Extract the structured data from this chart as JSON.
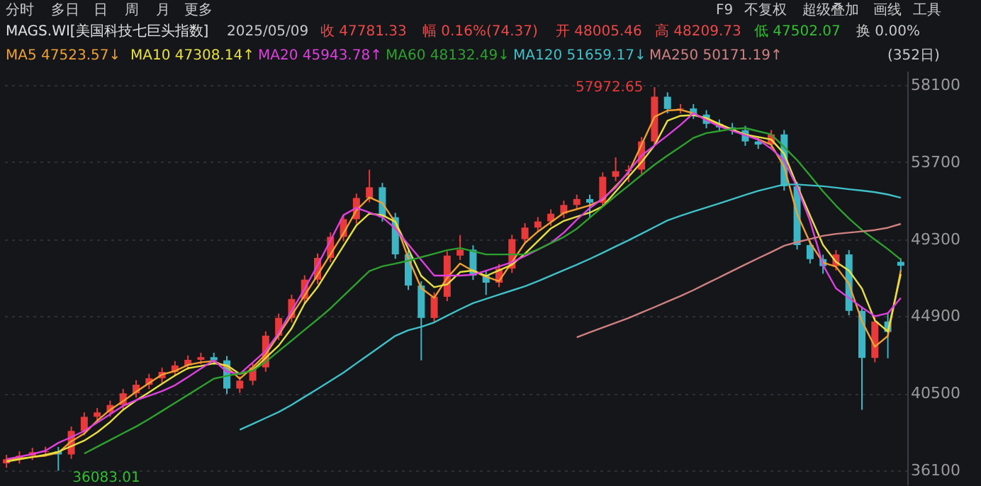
{
  "chart_data": {
    "type": "candlestick",
    "title": "MAGS.WI[美国科技七巨头指数]",
    "categories": [
      null,
      null,
      null,
      null,
      null,
      null,
      null,
      null,
      null,
      null,
      null,
      null,
      null,
      null,
      null,
      null,
      null,
      null,
      null,
      null,
      null,
      null,
      null,
      null,
      null,
      null,
      null,
      null,
      null,
      null,
      null,
      null,
      null,
      null,
      null,
      null,
      null,
      null,
      null,
      null,
      null,
      null,
      null,
      null,
      null,
      null,
      null,
      null,
      null,
      null,
      null,
      null,
      null,
      null,
      null,
      null,
      null,
      null,
      null,
      null,
      null,
      null,
      null,
      null,
      null,
      null,
      null,
      null,
      null,
      null
    ],
    "ohlc": [
      [
        36500,
        36990,
        36250,
        36740
      ],
      [
        36740,
        37190,
        36490,
        36940
      ],
      [
        36940,
        37390,
        36690,
        37140
      ],
      [
        37140,
        37440,
        36890,
        37190
      ],
      [
        37190,
        37440,
        36083.01,
        37010
      ],
      [
        37010,
        38603,
        36760,
        38353
      ],
      [
        38353,
        39409,
        38103,
        39159
      ],
      [
        39159,
        39660,
        38909,
        39410
      ],
      [
        39410,
        40080,
        39160,
        39830
      ],
      [
        39830,
        40750,
        39580,
        40500
      ],
      [
        40500,
        41240,
        40250,
        40990
      ],
      [
        40990,
        41610,
        40740,
        41360
      ],
      [
        41360,
        41970,
        41110,
        41720
      ],
      [
        41720,
        42340,
        41470,
        42090
      ],
      [
        42090,
        42660,
        41840,
        42410
      ],
      [
        42410,
        42815,
        42160,
        42565
      ],
      [
        42565,
        42815,
        42130,
        42380
      ],
      [
        42380,
        42630,
        40471,
        40771
      ],
      [
        40771,
        41470,
        40521,
        41220
      ],
      [
        41220,
        42230,
        40970,
        41980
      ],
      [
        41980,
        44040,
        41730,
        43790
      ],
      [
        43790,
        45050,
        43540,
        44800
      ],
      [
        44800,
        46130,
        44550,
        45880
      ],
      [
        45880,
        47240,
        45630,
        46990
      ],
      [
        46990,
        48480,
        46740,
        48230
      ],
      [
        48230,
        49680,
        47980,
        49430
      ],
      [
        49430,
        50690,
        49180,
        50440
      ],
      [
        50440,
        51900,
        50190,
        51650
      ],
      [
        51650,
        53260,
        51400,
        52260
      ],
      [
        52260,
        52510,
        50300,
        50550
      ],
      [
        50550,
        50800,
        48180,
        48430
      ],
      [
        48430,
        48680,
        46400,
        46650
      ],
      [
        46650,
        46900,
        42380,
        44801
      ],
      [
        44801,
        46260,
        44551,
        46010
      ],
      [
        46010,
        48610,
        45760,
        48360
      ],
      [
        48360,
        49534,
        48110,
        48700
      ],
      [
        48700,
        48950,
        46970,
        47220
      ],
      [
        47220,
        47470,
        46113,
        46816
      ],
      [
        46816,
        47872,
        46566,
        47622
      ],
      [
        47622,
        49550,
        47372,
        49300
      ],
      [
        49300,
        50210,
        49050,
        49960
      ],
      [
        49960,
        50560,
        49710,
        50310
      ],
      [
        50310,
        51000,
        50060,
        50750
      ],
      [
        50750,
        51499,
        50500,
        51249
      ],
      [
        51249,
        51840,
        50999,
        51590
      ],
      [
        51590,
        51840,
        50546,
        51380
      ],
      [
        51380,
        53110,
        51130,
        52860
      ],
      [
        52860,
        53967,
        52610,
        53180
      ],
      [
        53180,
        53514,
        52561,
        53264
      ],
      [
        53264,
        55126,
        53014,
        54876
      ],
      [
        54876,
        57972.65,
        54626,
        57430
      ],
      [
        57430,
        57680,
        56480,
        56730
      ],
      [
        56730,
        57010,
        56480,
        56760
      ],
      [
        56760,
        57010,
        56160,
        56410
      ],
      [
        56410,
        56660,
        55630,
        55880
      ],
      [
        55880,
        56130,
        55430,
        55680
      ],
      [
        55680,
        55930,
        55270,
        55520
      ],
      [
        55520,
        55770,
        54626,
        54876
      ],
      [
        54876,
        55126,
        54450,
        54700
      ],
      [
        54700,
        55529,
        54450,
        55279
      ],
      [
        55279,
        55529,
        52070,
        52320
      ],
      [
        52320,
        52570,
        48710,
        48960
      ],
      [
        48960,
        49210,
        47910,
        48160
      ],
      [
        48160,
        48410,
        47322,
        47760
      ],
      [
        47760,
        48678,
        47510,
        48428
      ],
      [
        48428,
        48678,
        44954,
        45204
      ],
      [
        45204,
        45454,
        39560,
        42520
      ],
      [
        42520,
        44850,
        42270,
        44600
      ],
      [
        44600,
        45101,
        42500,
        44000
      ],
      [
        48005.46,
        48209.73,
        47502.07,
        47781.33
      ]
    ],
    "colors": [
      "#e83a3a",
      "#e83a3a",
      "#e83a3a",
      "#e83a3a",
      "#3cb6c4",
      "#e83a3a",
      "#e83a3a",
      "#e83a3a",
      "#e83a3a",
      "#e83a3a",
      "#e83a3a",
      "#e83a3a",
      "#e83a3a",
      "#e83a3a",
      "#e83a3a",
      "#e83a3a",
      "#3cb6c4",
      "#3cb6c4",
      "#e83a3a",
      "#e83a3a",
      "#e83a3a",
      "#e83a3a",
      "#e83a3a",
      "#e83a3a",
      "#e83a3a",
      "#e83a3a",
      "#e83a3a",
      "#e83a3a",
      "#e83a3a",
      "#3cb6c4",
      "#3cb6c4",
      "#3cb6c4",
      "#3cb6c4",
      "#e83a3a",
      "#e83a3a",
      "#e83a3a",
      "#3cb6c4",
      "#3cb6c4",
      "#e83a3a",
      "#e83a3a",
      "#e83a3a",
      "#e83a3a",
      "#e83a3a",
      "#e83a3a",
      "#e83a3a",
      "#3cb6c4",
      "#e83a3a",
      "#e83a3a",
      "#e83a3a",
      "#e83a3a",
      "#e83a3a",
      "#3cb6c4",
      "#e83a3a",
      "#3cb6c4",
      "#3cb6c4",
      "#3cb6c4",
      "#3cb6c4",
      "#3cb6c4",
      "#3cb6c4",
      "#e83a3a",
      "#3cb6c4",
      "#3cb6c4",
      "#3cb6c4",
      "#3cb6c4",
      "#e83a3a",
      "#3cb6c4",
      "#3cb6c4",
      "#e83a3a",
      "#3cb6c4",
      "#3cb6c4"
    ],
    "series": [
      {
        "name": "MA5 47523.57↓",
        "type": "line",
        "color": "#f0a030",
        "values": [
          36700,
          36780,
          36860,
          36940,
          37110,
          37760,
          38200,
          38940,
          39560,
          40050,
          40590,
          41080,
          41570,
          41770,
          42120,
          42270,
          42340,
          42000,
          41330,
          41980,
          42720,
          43840,
          44960,
          46080,
          47250,
          48440,
          49630,
          50950,
          51680,
          51360,
          50260,
          48220,
          46500,
          45950,
          47090,
          47910,
          47480,
          47150,
          46900,
          47990,
          49080,
          49730,
          50260,
          50800,
          51010,
          51230,
          51550,
          52330,
          53100,
          54690,
          56280,
          56640,
          56690,
          56480,
          56120,
          55790,
          55530,
          55260,
          55000,
          54690,
          53430,
          50740,
          49100,
          47960,
          47730,
          46750,
          44620,
          43160,
          43770,
          47524
        ]
      },
      {
        "name": "MA10 47308.14↑",
        "type": "line",
        "color": "#e8e040",
        "values": [
          36600,
          36730,
          36860,
          36990,
          37160,
          37480,
          37800,
          38270,
          38860,
          39560,
          40090,
          40560,
          41040,
          41520,
          41930,
          42060,
          42210,
          42100,
          41600,
          41820,
          42520,
          43220,
          44210,
          45620,
          46560,
          47740,
          48910,
          50090,
          50760,
          50670,
          50290,
          48750,
          47200,
          46560,
          46720,
          47420,
          47510,
          47200,
          47520,
          47840,
          48470,
          49190,
          49910,
          50340,
          50580,
          50810,
          51170,
          52010,
          52860,
          53700,
          54650,
          56060,
          56340,
          56380,
          56210,
          55880,
          55560,
          55270,
          55130,
          54990,
          54180,
          52360,
          50650,
          48970,
          48000,
          47500,
          46480,
          44660,
          44030,
          47308
        ]
      },
      {
        "name": "MA20 45943.78↑",
        "type": "line",
        "color": "#e040e0",
        "values": [
          36741,
          36885,
          37029,
          37220,
          37670,
          38000,
          38353,
          38830,
          39300,
          39780,
          40110,
          40360,
          40620,
          40960,
          41430,
          41910,
          42383,
          41730,
          41600,
          42260,
          42920,
          43950,
          45200,
          46460,
          47800,
          49230,
          50670,
          51090,
          50820,
          50550,
          49900,
          49000,
          48110,
          47219,
          47219,
          47219,
          47270,
          47500,
          47740,
          47980,
          48330,
          48700,
          49080,
          49670,
          50410,
          51070,
          51620,
          52240,
          53160,
          54070,
          54650,
          55220,
          55820,
          56488,
          56090,
          55740,
          55480,
          55230,
          54980,
          54470,
          53800,
          52260,
          50340,
          47820,
          46490,
          45940,
          45400,
          44900,
          45070,
          45944
        ]
      },
      {
        "name": "MA60 48132.49↓",
        "type": "line",
        "color": "#2ea02e",
        "values": [
          null,
          null,
          null,
          null,
          null,
          null,
          37060,
          37450,
          37830,
          38220,
          38600,
          39030,
          39490,
          39950,
          40410,
          40870,
          41335,
          41490,
          41640,
          41790,
          42300,
          42910,
          43510,
          44120,
          44720,
          45350,
          46060,
          46770,
          47480,
          47750,
          47900,
          48070,
          48270,
          48470,
          48670,
          48790,
          48610,
          48428,
          48428,
          48428,
          48428,
          48710,
          49070,
          49420,
          49890,
          50520,
          51150,
          51770,
          52360,
          52960,
          53550,
          54070,
          54570,
          55080,
          55350,
          55470,
          55590,
          55640,
          55460,
          55279,
          54550,
          53810,
          52930,
          52020,
          51210,
          50480,
          49820,
          49270,
          48730,
          48132
        ]
      },
      {
        "name": "MA120 51659.17↓",
        "type": "line",
        "color": "#40c0c8",
        "values": [
          null,
          null,
          null,
          null,
          null,
          null,
          null,
          null,
          null,
          null,
          null,
          null,
          null,
          null,
          null,
          null,
          null,
          null,
          38420,
          38750,
          39090,
          39430,
          39840,
          40300,
          40750,
          41210,
          41680,
          42210,
          42730,
          43260,
          43780,
          44100,
          44290,
          44550,
          44930,
          45300,
          45650,
          45890,
          46130,
          46370,
          46610,
          46900,
          47210,
          47530,
          47840,
          48170,
          48520,
          48880,
          49234,
          49610,
          49990,
          50370,
          50630,
          50870,
          51110,
          51340,
          51580,
          51820,
          52055,
          52240,
          52420,
          52420,
          52370,
          52320,
          52240,
          52150,
          52070,
          51980,
          51850,
          51659
        ]
      },
      {
        "name": "MA250 50171.19↑",
        "type": "line",
        "color": "#d08080",
        "values": [
          null,
          null,
          null,
          null,
          null,
          null,
          null,
          null,
          null,
          null,
          null,
          null,
          null,
          null,
          null,
          null,
          null,
          null,
          null,
          null,
          null,
          null,
          null,
          null,
          null,
          null,
          null,
          null,
          null,
          null,
          null,
          null,
          null,
          null,
          null,
          null,
          null,
          null,
          null,
          null,
          null,
          null,
          null,
          null,
          43700,
          43980,
          44250,
          44530,
          44801,
          45110,
          45420,
          45740,
          46050,
          46390,
          46760,
          47120,
          47490,
          47850,
          48210,
          48560,
          48920,
          49130,
          49310,
          49490,
          49600,
          49670,
          49740,
          49820,
          49950,
          50171
        ]
      }
    ],
    "ylim": [
      35290,
      58906
    ],
    "yticks": [
      36100,
      40500,
      44900,
      49300,
      53700,
      58100
    ],
    "grid": "y",
    "tick_labels": "y",
    "annotations": [
      "分时",
      "多日",
      "日",
      "周",
      "月",
      "更多",
      "F9",
      "不复权",
      "超级叠加",
      "画线",
      "工具",
      "2025/05/09",
      "收 47781.33",
      "幅 0.16%(74.37)",
      "开 48005.46",
      "高 48209.73",
      "低 47502.07",
      "换 0.00%",
      "(352日)",
      "57972.65",
      "36083.01"
    ]
  }
}
